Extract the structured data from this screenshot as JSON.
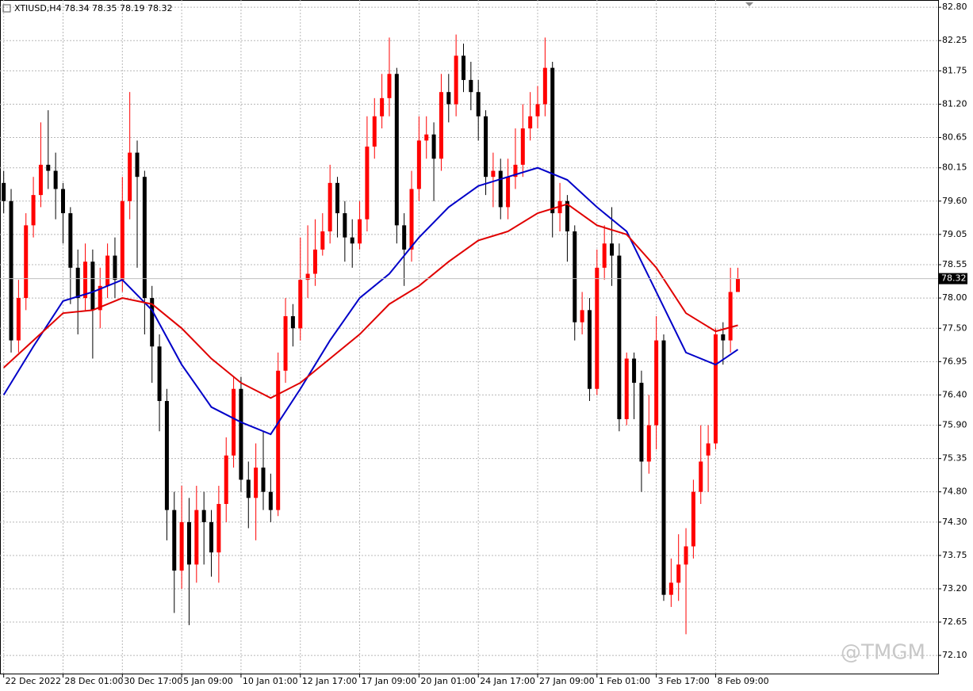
{
  "chart_data": {
    "type": "candlestick",
    "title": "XTIUSD,H4  78.34 78.35 78.19 78.32",
    "watermark": "@TMGM",
    "up_color": "#ff0000",
    "down_color": "#000000",
    "grid": true,
    "xlim": [
      -0.5,
      126
    ],
    "ylim": [
      71.8,
      82.92
    ],
    "xticks": [
      {
        "value": 0,
        "label": "22 Dec 2022"
      },
      {
        "value": 8,
        "label": "28 Dec 01:00"
      },
      {
        "value": 16,
        "label": "30 Dec 17:00"
      },
      {
        "value": 24,
        "label": "5 Jan 09:00"
      },
      {
        "value": 32,
        "label": "10 Jan 01:00"
      },
      {
        "value": 40,
        "label": "12 Jan 17:00"
      },
      {
        "value": 48,
        "label": "17 Jan 09:00"
      },
      {
        "value": 56,
        "label": "20 Jan 01:00"
      },
      {
        "value": 64,
        "label": "24 Jan 17:00"
      },
      {
        "value": 72,
        "label": "27 Jan 09:00"
      },
      {
        "value": 80,
        "label": "1 Feb 01:00"
      },
      {
        "value": 88,
        "label": "3 Feb 17:00"
      },
      {
        "value": 96,
        "label": "8 Feb 09:00"
      }
    ],
    "yticks": [
      {
        "value": 82.8,
        "label": "82.80"
      },
      82.25,
      81.75,
      {
        "value": 81.2,
        "label": "81.20"
      },
      80.65,
      80.15,
      {
        "value": 79.6,
        "label": "79.60"
      },
      79.05,
      78.55,
      {
        "value": 78.0,
        "label": "78.00"
      },
      {
        "value": 77.5,
        "label": "77.50"
      },
      76.95,
      {
        "value": 76.4,
        "label": "76.40"
      },
      {
        "value": 75.9,
        "label": "75.90"
      },
      75.35,
      {
        "value": 74.8,
        "label": "74.80"
      },
      {
        "value": 74.3,
        "label": "74.30"
      },
      73.75,
      {
        "value": 73.2,
        "label": "73.20"
      },
      72.65,
      {
        "value": 72.1,
        "label": "72.10"
      }
    ],
    "last_price": 78.32,
    "ohlc": {
      "open": [
        79.9,
        79.6,
        77.3,
        78.0,
        79.2,
        79.7,
        80.2,
        80.1,
        79.8,
        79.4,
        78.5,
        78.0,
        78.6,
        77.8,
        78.2,
        78.7,
        78.3,
        79.6,
        80.4,
        80.0,
        78.0,
        77.2,
        76.3,
        74.5,
        73.5,
        74.3,
        73.6,
        74.5,
        74.3,
        73.8,
        74.6,
        75.4,
        76.5,
        75.0,
        74.7,
        75.2,
        74.8,
        74.5,
        76.8,
        77.7,
        77.5,
        78.3,
        78.4,
        78.8,
        79.1,
        79.9,
        79.4,
        79.0,
        78.9,
        79.3,
        80.5,
        81.0,
        81.3,
        81.7,
        79.2,
        78.8,
        79.8,
        80.6,
        80.7,
        80.3,
        81.4,
        81.2,
        82.0,
        81.6,
        81.4,
        81.0,
        80.0,
        80.1,
        79.5,
        80.0,
        80.2,
        80.8,
        81.0,
        81.2,
        81.8,
        79.4,
        79.6,
        79.1,
        77.6,
        77.8,
        76.5,
        78.5,
        78.9,
        78.7,
        76.0,
        77.0,
        76.6,
        75.3,
        75.9,
        77.3,
        73.1,
        73.3,
        73.6,
        73.9,
        74.8,
        75.4,
        75.6,
        77.4,
        77.3,
        78.1
      ],
      "high": [
        80.1,
        79.8,
        78.3,
        79.4,
        80.0,
        80.9,
        81.1,
        80.4,
        79.9,
        79.5,
        78.8,
        78.9,
        78.8,
        78.5,
        78.9,
        79.0,
        80.0,
        81.4,
        80.6,
        80.1,
        78.2,
        77.4,
        76.5,
        74.8,
        74.9,
        74.7,
        74.9,
        74.8,
        74.5,
        74.9,
        75.7,
        76.7,
        76.7,
        75.3,
        75.6,
        75.8,
        75.1,
        77.1,
        78.0,
        77.9,
        79.0,
        79.2,
        79.3,
        79.4,
        80.2,
        80.0,
        79.6,
        79.3,
        79.6,
        81.0,
        81.3,
        81.7,
        82.3,
        81.8,
        79.4,
        80.1,
        81.0,
        81.0,
        80.9,
        81.7,
        81.7,
        82.35,
        82.2,
        81.9,
        81.6,
        81.1,
        80.4,
        80.3,
        80.3,
        80.8,
        81.2,
        81.4,
        81.5,
        82.3,
        81.9,
        79.9,
        79.7,
        79.2,
        78.1,
        78.0,
        78.8,
        79.2,
        79.5,
        78.9,
        77.1,
        77.1,
        76.8,
        76.4,
        77.7,
        77.4,
        73.7,
        74.1,
        74.2,
        75.0,
        75.9,
        75.9,
        77.5,
        77.6,
        78.5,
        78.5
      ],
      "low": [
        79.4,
        77.1,
        77.1,
        77.8,
        79.0,
        79.5,
        79.8,
        79.3,
        78.9,
        77.9,
        77.4,
        77.8,
        77.0,
        77.5,
        78.0,
        78.0,
        78.1,
        79.3,
        78.5,
        77.4,
        76.6,
        75.8,
        74.0,
        72.8,
        73.2,
        72.6,
        73.3,
        73.6,
        73.4,
        73.3,
        74.3,
        75.2,
        74.8,
        74.2,
        74.0,
        74.5,
        74.3,
        74.4,
        76.6,
        77.2,
        77.3,
        78.0,
        78.2,
        78.7,
        78.9,
        79.0,
        78.6,
        78.5,
        78.8,
        79.1,
        80.3,
        80.8,
        81.0,
        78.9,
        78.2,
        78.6,
        79.6,
        80.3,
        79.6,
        80.1,
        80.9,
        81.0,
        81.4,
        81.1,
        80.6,
        79.7,
        79.5,
        79.3,
        79.3,
        79.8,
        80.0,
        80.6,
        80.8,
        81.0,
        79.0,
        79.1,
        78.6,
        77.3,
        77.4,
        76.3,
        76.4,
        78.3,
        78.2,
        75.8,
        75.9,
        76.0,
        74.8,
        75.1,
        75.5,
        73.0,
        72.9,
        73.0,
        72.45,
        73.7,
        74.6,
        74.8,
        75.5,
        76.9,
        77.1,
        78.19
      ],
      "close": [
        79.6,
        77.3,
        78.0,
        79.2,
        79.7,
        80.2,
        80.1,
        79.8,
        79.4,
        78.5,
        78.0,
        78.6,
        77.8,
        78.2,
        78.7,
        78.3,
        79.6,
        80.4,
        80.0,
        78.0,
        77.2,
        76.3,
        74.5,
        73.5,
        74.3,
        73.6,
        74.5,
        74.3,
        73.8,
        74.6,
        75.4,
        76.5,
        75.0,
        74.7,
        75.2,
        74.8,
        74.5,
        76.8,
        77.7,
        77.5,
        78.3,
        78.4,
        78.8,
        79.1,
        79.9,
        79.4,
        79.0,
        78.9,
        79.3,
        80.5,
        81.0,
        81.3,
        81.7,
        79.2,
        78.8,
        79.8,
        80.6,
        80.7,
        80.3,
        81.4,
        81.2,
        82.0,
        81.6,
        81.4,
        81.0,
        80.0,
        80.1,
        79.5,
        80.0,
        80.2,
        80.8,
        81.0,
        81.2,
        81.8,
        79.4,
        79.6,
        79.1,
        77.6,
        77.8,
        76.5,
        78.5,
        78.9,
        78.7,
        76.0,
        77.0,
        76.6,
        75.3,
        75.9,
        77.3,
        73.1,
        73.3,
        73.6,
        73.9,
        74.8,
        75.3,
        75.6,
        77.4,
        77.3,
        78.1,
        78.32
      ]
    },
    "ma_x": [
      0,
      4,
      8,
      12,
      16,
      20,
      24,
      28,
      32,
      36,
      40,
      44,
      48,
      52,
      56,
      60,
      64,
      68,
      72,
      76,
      80,
      84,
      88,
      92,
      96,
      99
    ],
    "series": [
      {
        "color": "#0000c8",
        "values": [
          76.4,
          77.2,
          77.95,
          78.1,
          78.3,
          77.8,
          76.9,
          76.2,
          75.95,
          75.75,
          76.5,
          77.3,
          78.0,
          78.4,
          79.0,
          79.5,
          79.85,
          80.0,
          80.15,
          79.95,
          79.5,
          79.1,
          78.1,
          77.1,
          76.9,
          77.15
        ]
      },
      {
        "color": "#e00000",
        "values": [
          76.85,
          77.3,
          77.75,
          77.8,
          78.0,
          77.9,
          77.5,
          77.0,
          76.6,
          76.35,
          76.6,
          77.0,
          77.4,
          77.9,
          78.2,
          78.6,
          78.95,
          79.1,
          79.4,
          79.55,
          79.2,
          79.05,
          78.5,
          77.75,
          77.45,
          77.55
        ]
      }
    ]
  }
}
